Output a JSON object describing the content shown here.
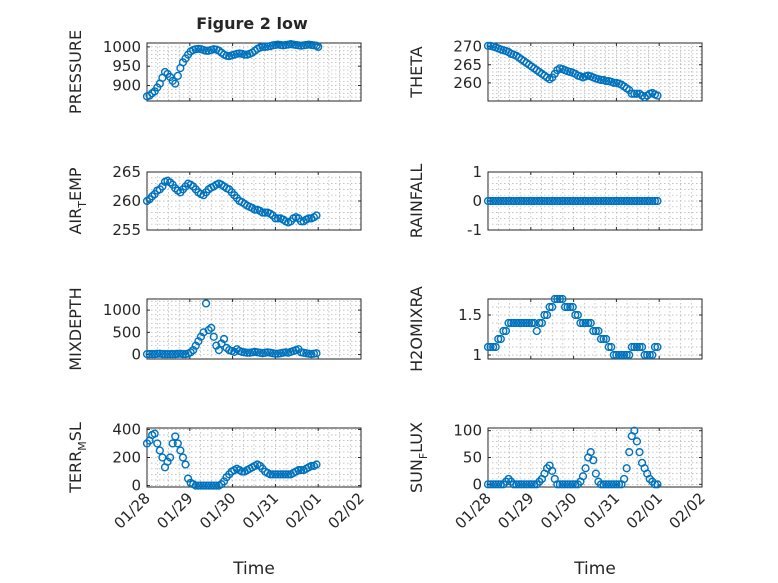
{
  "figure_title": "Figure 2 low",
  "colors": {
    "marker": "#0072BD",
    "axis": "#262626",
    "grid": "#b0b0b0",
    "background": "#ffffff"
  },
  "chart_data": [
    {
      "id": "pressure",
      "type": "scatter",
      "ylabel": "PRESSURE",
      "xlabel": "",
      "xlim": [
        0,
        5
      ],
      "ylim": [
        860,
        1010
      ],
      "xticks": [
        0,
        1,
        2,
        3,
        4
      ],
      "xtick_labels": [
        "01/28",
        "01/29",
        "01/30",
        "01/31",
        "02/01"
      ],
      "yticks": [
        900,
        950,
        1000
      ],
      "ytick_labels": [
        "900",
        "950",
        "1000"
      ],
      "grid": true,
      "show_xtick_labels": false,
      "x": [
        0.0,
        0.06,
        0.12,
        0.18,
        0.24,
        0.3,
        0.36,
        0.42,
        0.48,
        0.54,
        0.6,
        0.66,
        0.72,
        0.78,
        0.84,
        0.9,
        0.96,
        1.02,
        1.08,
        1.14,
        1.2,
        1.26,
        1.32,
        1.38,
        1.44,
        1.5,
        1.56,
        1.62,
        1.68,
        1.74,
        1.8,
        1.86,
        1.92,
        1.98,
        2.04,
        2.1,
        2.16,
        2.22,
        2.28,
        2.34,
        2.4,
        2.46,
        2.52,
        2.58,
        2.64,
        2.7,
        2.76,
        2.82,
        2.88,
        2.94,
        3.0,
        3.06,
        3.12,
        3.18,
        3.24,
        3.3,
        3.36,
        3.42,
        3.48,
        3.54,
        3.6,
        3.66,
        3.72,
        3.78,
        3.84,
        3.9,
        3.96,
        4.0
      ],
      "y": [
        872,
        874,
        880,
        885,
        895,
        905,
        920,
        935,
        930,
        922,
        912,
        905,
        925,
        945,
        960,
        970,
        980,
        988,
        992,
        994,
        995,
        994,
        992,
        990,
        990,
        992,
        994,
        993,
        990,
        985,
        980,
        977,
        976,
        978,
        980,
        982,
        983,
        982,
        980,
        980,
        982,
        985,
        990,
        995,
        998,
        1000,
        1000,
        1001,
        1002,
        1004,
        1005,
        1006,
        1005,
        1004,
        1005,
        1006,
        1007,
        1006,
        1005,
        1004,
        1003,
        1004,
        1005,
        1006,
        1005,
        1004,
        1003,
        1000
      ]
    },
    {
      "id": "theta",
      "type": "scatter",
      "ylabel": "THETA",
      "xlabel": "",
      "xlim": [
        0,
        5
      ],
      "ylim": [
        255,
        271
      ],
      "xticks": [
        0,
        1,
        2,
        3,
        4
      ],
      "xtick_labels": [
        "01/28",
        "01/29",
        "01/30",
        "01/31",
        "02/01"
      ],
      "yticks": [
        260,
        265,
        270
      ],
      "ytick_labels": [
        "260",
        "265",
        "270"
      ],
      "grid": true,
      "show_xtick_labels": false,
      "x": [
        0.0,
        0.06,
        0.12,
        0.18,
        0.24,
        0.3,
        0.36,
        0.42,
        0.48,
        0.54,
        0.6,
        0.66,
        0.72,
        0.78,
        0.84,
        0.9,
        0.96,
        1.02,
        1.08,
        1.14,
        1.2,
        1.26,
        1.32,
        1.38,
        1.44,
        1.5,
        1.56,
        1.62,
        1.68,
        1.74,
        1.8,
        1.86,
        1.92,
        1.98,
        2.04,
        2.1,
        2.16,
        2.22,
        2.28,
        2.34,
        2.4,
        2.46,
        2.52,
        2.58,
        2.64,
        2.7,
        2.76,
        2.82,
        2.88,
        2.94,
        3.0,
        3.06,
        3.12,
        3.18,
        3.24,
        3.3,
        3.36,
        3.42,
        3.48,
        3.54,
        3.6,
        3.66,
        3.72,
        3.78,
        3.84,
        3.9,
        3.96
      ],
      "y": [
        270.2,
        270.2,
        270.0,
        269.8,
        269.5,
        269.2,
        269.0,
        268.8,
        268.5,
        268.0,
        267.8,
        267.5,
        267.0,
        266.5,
        266.0,
        265.5,
        265.0,
        264.5,
        264.0,
        263.5,
        263.0,
        262.5,
        262.0,
        261.5,
        261.0,
        261.5,
        262.5,
        263.5,
        264.0,
        263.8,
        263.5,
        263.2,
        263.0,
        262.8,
        262.5,
        262.0,
        261.8,
        261.5,
        261.8,
        262.0,
        261.8,
        261.5,
        261.2,
        261.0,
        260.8,
        260.8,
        260.5,
        260.5,
        260.3,
        260.0,
        260.0,
        259.8,
        259.5,
        259.0,
        258.5,
        258.0,
        257.0,
        257.0,
        257.0,
        257.0,
        256.5,
        256.0,
        256.5,
        257.0,
        257.2,
        256.8,
        256.5
      ]
    },
    {
      "id": "air_temp",
      "type": "scatter",
      "ylabel": "AIR_TEMP",
      "xlabel": "",
      "xlim": [
        0,
        5
      ],
      "ylim": [
        255,
        265
      ],
      "xticks": [
        0,
        1,
        2,
        3,
        4
      ],
      "xtick_labels": [
        "01/28",
        "01/29",
        "01/30",
        "01/31",
        "02/01"
      ],
      "yticks": [
        255,
        260,
        265
      ],
      "ytick_labels": [
        "255",
        "260",
        "265"
      ],
      "grid": true,
      "show_xtick_labels": false,
      "x": [
        0.0,
        0.06,
        0.12,
        0.18,
        0.24,
        0.3,
        0.36,
        0.42,
        0.48,
        0.54,
        0.6,
        0.66,
        0.72,
        0.78,
        0.84,
        0.9,
        0.96,
        1.02,
        1.08,
        1.14,
        1.2,
        1.26,
        1.32,
        1.38,
        1.44,
        1.5,
        1.56,
        1.62,
        1.68,
        1.74,
        1.8,
        1.86,
        1.92,
        1.98,
        2.04,
        2.1,
        2.16,
        2.22,
        2.28,
        2.34,
        2.4,
        2.46,
        2.52,
        2.58,
        2.64,
        2.7,
        2.76,
        2.82,
        2.88,
        2.94,
        3.0,
        3.06,
        3.12,
        3.18,
        3.24,
        3.3,
        3.36,
        3.42,
        3.48,
        3.54,
        3.6,
        3.66,
        3.72,
        3.78,
        3.84,
        3.9,
        3.96
      ],
      "y": [
        260.0,
        260.3,
        260.8,
        261.2,
        261.8,
        262.0,
        262.5,
        263.3,
        263.5,
        263.2,
        262.8,
        262.2,
        261.8,
        261.5,
        262.0,
        262.5,
        263.0,
        262.8,
        262.5,
        262.0,
        261.5,
        261.2,
        261.0,
        261.5,
        262.0,
        262.3,
        262.5,
        262.8,
        263.0,
        262.8,
        262.5,
        262.2,
        262.0,
        261.5,
        261.0,
        260.5,
        260.0,
        259.8,
        259.5,
        259.2,
        259.0,
        258.8,
        258.5,
        258.5,
        258.3,
        258.0,
        258.0,
        258.0,
        257.8,
        257.5,
        257.0,
        257.0,
        257.0,
        256.8,
        256.5,
        256.3,
        256.5,
        257.0,
        257.2,
        257.0,
        256.5,
        256.5,
        256.8,
        257.0,
        257.0,
        257.2,
        257.5
      ]
    },
    {
      "id": "rainfall",
      "type": "scatter",
      "ylabel": "RAINFALL",
      "xlabel": "",
      "xlim": [
        0,
        5
      ],
      "ylim": [
        -1,
        1
      ],
      "xticks": [
        0,
        1,
        2,
        3,
        4
      ],
      "xtick_labels": [
        "01/28",
        "01/29",
        "01/30",
        "01/31",
        "02/01"
      ],
      "yticks": [
        -1,
        0,
        1
      ],
      "ytick_labels": [
        "-1",
        "0",
        "1"
      ],
      "grid": true,
      "show_xtick_labels": false,
      "x": [
        0.0,
        0.06,
        0.12,
        0.18,
        0.24,
        0.3,
        0.36,
        0.42,
        0.48,
        0.54,
        0.6,
        0.66,
        0.72,
        0.78,
        0.84,
        0.9,
        0.96,
        1.02,
        1.08,
        1.14,
        1.2,
        1.26,
        1.32,
        1.38,
        1.44,
        1.5,
        1.56,
        1.62,
        1.68,
        1.74,
        1.8,
        1.86,
        1.92,
        1.98,
        2.04,
        2.1,
        2.16,
        2.22,
        2.28,
        2.34,
        2.4,
        2.46,
        2.52,
        2.58,
        2.64,
        2.7,
        2.76,
        2.82,
        2.88,
        2.94,
        3.0,
        3.06,
        3.12,
        3.18,
        3.24,
        3.3,
        3.36,
        3.42,
        3.48,
        3.54,
        3.6,
        3.66,
        3.72,
        3.78,
        3.84,
        3.9,
        3.96
      ],
      "y": [
        0,
        0,
        0,
        0,
        0,
        0,
        0,
        0,
        0,
        0,
        0,
        0,
        0,
        0,
        0,
        0,
        0,
        0,
        0,
        0,
        0,
        0,
        0,
        0,
        0,
        0,
        0,
        0,
        0,
        0,
        0,
        0,
        0,
        0,
        0,
        0,
        0,
        0,
        0,
        0,
        0,
        0,
        0,
        0,
        0,
        0,
        0,
        0,
        0,
        0,
        0,
        0,
        0,
        0,
        0,
        0,
        0,
        0,
        0,
        0,
        0,
        0,
        0,
        0,
        0,
        0,
        0
      ]
    },
    {
      "id": "mixdepth",
      "type": "scatter",
      "ylabel": "MIXDEPTH",
      "xlabel": "",
      "xlim": [
        0,
        5
      ],
      "ylim": [
        -100,
        1250
      ],
      "xticks": [
        0,
        1,
        2,
        3,
        4
      ],
      "xtick_labels": [
        "01/28",
        "01/29",
        "01/30",
        "01/31",
        "02/01"
      ],
      "yticks": [
        0,
        500,
        1000
      ],
      "ytick_labels": [
        "0",
        "500",
        "1000"
      ],
      "grid": true,
      "show_xtick_labels": false,
      "x": [
        0.0,
        0.06,
        0.12,
        0.18,
        0.24,
        0.3,
        0.36,
        0.42,
        0.48,
        0.54,
        0.6,
        0.66,
        0.72,
        0.78,
        0.84,
        0.9,
        0.96,
        1.02,
        1.08,
        1.14,
        1.2,
        1.26,
        1.32,
        1.38,
        1.44,
        1.5,
        1.56,
        1.62,
        1.68,
        1.74,
        1.8,
        1.86,
        1.92,
        1.98,
        2.04,
        2.1,
        2.16,
        2.22,
        2.28,
        2.34,
        2.4,
        2.46,
        2.52,
        2.58,
        2.64,
        2.7,
        2.76,
        2.82,
        2.88,
        2.94,
        3.0,
        3.06,
        3.12,
        3.18,
        3.24,
        3.3,
        3.36,
        3.42,
        3.48,
        3.54,
        3.6,
        3.66,
        3.72,
        3.78,
        3.84,
        3.9,
        3.96
      ],
      "y": [
        10,
        10,
        10,
        10,
        15,
        20,
        10,
        10,
        10,
        10,
        10,
        10,
        15,
        20,
        10,
        10,
        20,
        50,
        100,
        200,
        300,
        400,
        500,
        1150,
        550,
        600,
        400,
        200,
        100,
        250,
        350,
        150,
        100,
        80,
        60,
        120,
        80,
        60,
        50,
        40,
        40,
        50,
        60,
        50,
        40,
        30,
        40,
        50,
        40,
        30,
        20,
        20,
        30,
        40,
        50,
        40,
        60,
        80,
        100,
        120,
        50,
        40,
        30,
        20,
        10,
        20,
        30
      ]
    },
    {
      "id": "h2omixra",
      "type": "scatter",
      "ylabel": "H2OMIXRA",
      "xlabel": "",
      "xlim": [
        0,
        5
      ],
      "ylim": [
        0.95,
        1.7
      ],
      "xticks": [
        0,
        1,
        2,
        3,
        4
      ],
      "xtick_labels": [
        "01/28",
        "01/29",
        "01/30",
        "01/31",
        "02/01"
      ],
      "yticks": [
        1,
        1.5
      ],
      "ytick_labels": [
        "1",
        "1.5"
      ],
      "grid": true,
      "show_xtick_labels": false,
      "x": [
        0.0,
        0.06,
        0.12,
        0.18,
        0.24,
        0.3,
        0.36,
        0.42,
        0.48,
        0.54,
        0.6,
        0.66,
        0.72,
        0.78,
        0.84,
        0.9,
        0.96,
        1.02,
        1.08,
        1.14,
        1.2,
        1.26,
        1.32,
        1.38,
        1.44,
        1.5,
        1.56,
        1.62,
        1.68,
        1.74,
        1.8,
        1.86,
        1.92,
        1.98,
        2.04,
        2.1,
        2.16,
        2.22,
        2.28,
        2.34,
        2.4,
        2.46,
        2.52,
        2.58,
        2.64,
        2.7,
        2.76,
        2.82,
        2.88,
        2.94,
        3.0,
        3.06,
        3.12,
        3.18,
        3.24,
        3.3,
        3.36,
        3.42,
        3.48,
        3.54,
        3.6,
        3.66,
        3.72,
        3.78,
        3.84,
        3.9,
        3.96
      ],
      "y": [
        1.1,
        1.1,
        1.1,
        1.1,
        1.2,
        1.2,
        1.3,
        1.3,
        1.4,
        1.4,
        1.4,
        1.4,
        1.4,
        1.4,
        1.4,
        1.4,
        1.4,
        1.4,
        1.4,
        1.3,
        1.4,
        1.4,
        1.5,
        1.5,
        1.6,
        1.6,
        1.7,
        1.7,
        1.7,
        1.7,
        1.6,
        1.6,
        1.6,
        1.6,
        1.5,
        1.5,
        1.4,
        1.4,
        1.4,
        1.4,
        1.4,
        1.3,
        1.3,
        1.3,
        1.2,
        1.2,
        1.2,
        1.1,
        1.1,
        1.0,
        1.0,
        1.0,
        1.0,
        1.0,
        1.0,
        1.0,
        1.1,
        1.1,
        1.1,
        1.1,
        1.1,
        1.0,
        1.0,
        1.0,
        1.0,
        1.1,
        1.1
      ]
    },
    {
      "id": "terr_msl",
      "type": "scatter",
      "ylabel": "TERR_MSL",
      "xlabel": "Time",
      "xlim": [
        0,
        5
      ],
      "ylim": [
        -10,
        410
      ],
      "xticks": [
        0,
        1,
        2,
        3,
        4,
        5
      ],
      "xtick_labels": [
        "01/28",
        "01/29",
        "01/30",
        "01/31",
        "02/01",
        "02/02"
      ],
      "yticks": [
        0,
        200,
        400
      ],
      "ytick_labels": [
        "0",
        "200",
        "400"
      ],
      "grid": true,
      "show_xtick_labels": true,
      "x": [
        0.0,
        0.06,
        0.12,
        0.18,
        0.24,
        0.3,
        0.36,
        0.42,
        0.48,
        0.54,
        0.6,
        0.66,
        0.72,
        0.78,
        0.84,
        0.9,
        0.96,
        1.02,
        1.08,
        1.14,
        1.2,
        1.26,
        1.32,
        1.38,
        1.44,
        1.5,
        1.56,
        1.62,
        1.68,
        1.74,
        1.8,
        1.86,
        1.92,
        1.98,
        2.04,
        2.1,
        2.16,
        2.22,
        2.28,
        2.34,
        2.4,
        2.46,
        2.52,
        2.58,
        2.64,
        2.7,
        2.76,
        2.82,
        2.88,
        2.94,
        3.0,
        3.06,
        3.12,
        3.18,
        3.24,
        3.3,
        3.36,
        3.42,
        3.48,
        3.54,
        3.6,
        3.66,
        3.72,
        3.78,
        3.84,
        3.9,
        3.96
      ],
      "y": [
        300,
        320,
        360,
        370,
        300,
        250,
        200,
        130,
        170,
        200,
        300,
        350,
        300,
        250,
        200,
        150,
        50,
        20,
        10,
        0,
        0,
        0,
        0,
        0,
        0,
        0,
        0,
        0,
        0,
        10,
        30,
        60,
        80,
        100,
        110,
        120,
        110,
        100,
        100,
        110,
        120,
        130,
        140,
        150,
        140,
        120,
        100,
        90,
        80,
        80,
        80,
        80,
        80,
        80,
        80,
        80,
        80,
        90,
        100,
        110,
        110,
        110,
        120,
        130,
        140,
        140,
        150
      ]
    },
    {
      "id": "sun_flux",
      "type": "scatter",
      "ylabel": "SUN_FLUX",
      "xlabel": "Time",
      "xlim": [
        0,
        5
      ],
      "ylim": [
        -5,
        105
      ],
      "xticks": [
        0,
        1,
        2,
        3,
        4,
        5
      ],
      "xtick_labels": [
        "01/28",
        "01/29",
        "01/30",
        "01/31",
        "02/01",
        "02/02"
      ],
      "yticks": [
        0,
        50,
        100
      ],
      "ytick_labels": [
        "0",
        "50",
        "100"
      ],
      "grid": true,
      "show_xtick_labels": true,
      "x": [
        0.0,
        0.06,
        0.12,
        0.18,
        0.24,
        0.3,
        0.36,
        0.42,
        0.48,
        0.54,
        0.6,
        0.66,
        0.72,
        0.78,
        0.84,
        0.9,
        0.96,
        1.02,
        1.08,
        1.14,
        1.2,
        1.26,
        1.32,
        1.38,
        1.44,
        1.5,
        1.56,
        1.62,
        1.68,
        1.74,
        1.8,
        1.86,
        1.92,
        1.98,
        2.04,
        2.1,
        2.16,
        2.22,
        2.28,
        2.34,
        2.4,
        2.46,
        2.52,
        2.58,
        2.64,
        2.7,
        2.76,
        2.82,
        2.88,
        2.94,
        3.0,
        3.06,
        3.12,
        3.18,
        3.24,
        3.3,
        3.36,
        3.42,
        3.48,
        3.54,
        3.6,
        3.66,
        3.72,
        3.78,
        3.84,
        3.9,
        3.96
      ],
      "y": [
        0,
        0,
        0,
        0,
        0,
        0,
        0,
        5,
        10,
        5,
        0,
        0,
        0,
        0,
        0,
        0,
        0,
        0,
        0,
        0,
        5,
        10,
        20,
        30,
        35,
        25,
        10,
        0,
        0,
        0,
        0,
        0,
        0,
        0,
        0,
        0,
        5,
        15,
        30,
        50,
        60,
        45,
        20,
        5,
        0,
        0,
        0,
        0,
        0,
        0,
        0,
        0,
        0,
        10,
        30,
        60,
        90,
        100,
        80,
        60,
        40,
        30,
        20,
        10,
        5,
        0,
        0
      ]
    }
  ]
}
